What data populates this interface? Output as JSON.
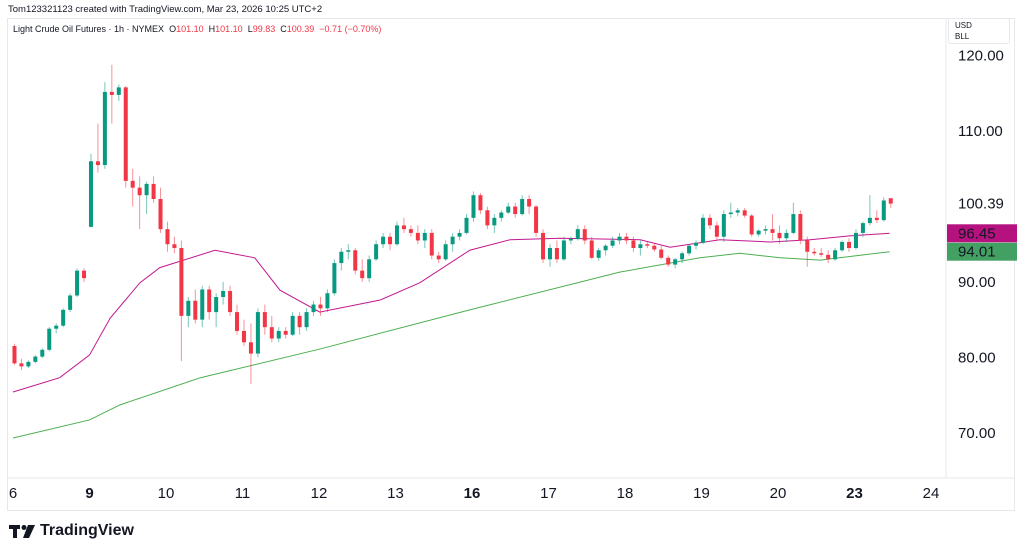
{
  "credit": "Tom123321123 created with TradingView.com, Mar 23, 2026 10:25 UTC+2",
  "legend": {
    "symbol": "Light Crude Oil Futures · 1h · NYMEX",
    "o_label": "O",
    "o": "101.10",
    "h_label": "H",
    "h": "101.10",
    "l_label": "L",
    "l": "99.83",
    "c_label": "C",
    "c": "100.39",
    "change": "−0.71 (−0.70%)"
  },
  "unit_box": {
    "currency": "USD",
    "unit": "BLL"
  },
  "logo": "TradingView",
  "chart_data": {
    "type": "candlestick",
    "interval": "1h",
    "ylim": [
      64,
      125
    ],
    "y_ticks": [
      "120.00",
      "110.00",
      "90.00",
      "80.00",
      "70.00"
    ],
    "y_tick_values": [
      120,
      110,
      90,
      80,
      70
    ],
    "price_labels": [
      {
        "text": "100.39",
        "value": 100.39,
        "bg": "",
        "color": "#131722"
      },
      {
        "text": "96.45",
        "value": 96.45,
        "bg": "#b5117f",
        "color": "#ffffff"
      },
      {
        "text": "94.01",
        "value": 94.01,
        "bg": "#43a063",
        "color": "#ffffff"
      }
    ],
    "colors": {
      "up": "#089981",
      "down": "#f23645",
      "ma_fast": "#c2188f",
      "ma_slow": "#4caf50"
    },
    "days": [
      {
        "label": "6",
        "bold": false,
        "candles": [
          [
            81.5,
            81.8,
            79,
            79.2
          ],
          [
            79.2,
            79.8,
            78.3,
            78.8
          ],
          [
            78.8,
            79.6,
            78.6,
            79.4
          ],
          [
            79.4,
            80.3,
            79.2,
            80.1
          ],
          [
            80.1,
            81.2,
            79.9,
            81
          ],
          [
            81,
            84,
            80.8,
            83.8
          ],
          [
            83.8,
            84.5,
            83.2,
            84.2
          ],
          [
            84.2,
            86.5,
            84,
            86.3
          ],
          [
            86.3,
            88.5,
            86,
            88.2
          ],
          [
            88.2,
            91.8,
            88,
            91.5
          ],
          [
            91.5,
            91.8,
            90,
            90.5
          ]
        ]
      },
      {
        "label": "9",
        "bold": true,
        "candles": [
          [
            97.3,
            107,
            97.3,
            106
          ],
          [
            106,
            111,
            104.5,
            105.5
          ],
          [
            105.5,
            116.5,
            105,
            115.2
          ],
          [
            115.2,
            118.8,
            111,
            114.8
          ],
          [
            114.8,
            116.2,
            114,
            115.8
          ],
          [
            115.8,
            116,
            102.5,
            103.4
          ],
          [
            103.4,
            105,
            100,
            102.5
          ],
          [
            102.5,
            104,
            97,
            101.5
          ],
          [
            101.5,
            103.3,
            99,
            103
          ],
          [
            103,
            104,
            100.5,
            101
          ],
          [
            101,
            102.5,
            96.5,
            97
          ]
        ]
      },
      {
        "label": "10",
        "bold": false,
        "candles": [
          [
            97,
            98,
            94,
            95
          ],
          [
            95,
            96,
            93.8,
            94.5
          ],
          [
            94.5,
            95.5,
            79.5,
            85.5
          ],
          [
            85.5,
            88,
            84,
            87.5
          ],
          [
            87.5,
            89,
            84.5,
            85
          ],
          [
            85,
            89.5,
            84,
            89
          ],
          [
            89,
            89.5,
            85,
            86
          ],
          [
            86,
            88.5,
            84,
            88
          ],
          [
            88,
            90,
            87,
            88.8
          ],
          [
            88.8,
            89.5,
            85.5,
            86
          ],
          [
            86,
            87,
            83,
            83.5
          ]
        ]
      },
      {
        "label": "11",
        "bold": false,
        "candles": [
          [
            83.5,
            85,
            81.5,
            82
          ],
          [
            82,
            84.5,
            76.5,
            80.5
          ],
          [
            80.5,
            86.5,
            80,
            86
          ],
          [
            86,
            87,
            83,
            84
          ],
          [
            84,
            85.5,
            82,
            82.5
          ],
          [
            82.5,
            84,
            82,
            83.5
          ],
          [
            83.5,
            84,
            82.5,
            83
          ],
          [
            83,
            86,
            82.8,
            85.5
          ],
          [
            85.5,
            86,
            83,
            84
          ],
          [
            84,
            86.5,
            83.5,
            86
          ],
          [
            86,
            87.5,
            85.5,
            87
          ]
        ]
      },
      {
        "label": "12",
        "bold": false,
        "candles": [
          [
            87,
            88,
            85.5,
            86.5
          ],
          [
            86.5,
            89,
            86,
            88.5
          ],
          [
            88.5,
            93,
            88.2,
            92.5
          ],
          [
            92.5,
            94.5,
            91.5,
            94
          ],
          [
            94,
            95,
            93,
            94.2
          ],
          [
            94.2,
            94.5,
            91,
            91.5
          ],
          [
            91.5,
            93,
            90,
            90.5
          ],
          [
            90.5,
            93.5,
            90,
            93
          ],
          [
            93,
            95.5,
            92.8,
            95
          ],
          [
            95,
            96.5,
            94.5,
            96
          ],
          [
            96,
            96.5,
            94.2,
            95
          ]
        ]
      },
      {
        "label": "13",
        "bold": false,
        "candles": [
          [
            95,
            98,
            94.8,
            97.5
          ],
          [
            97.5,
            98.5,
            96.5,
            97
          ],
          [
            97,
            97.5,
            96,
            96.5
          ],
          [
            96.5,
            97.5,
            95,
            95.5
          ],
          [
            95.5,
            97,
            94.5,
            96.5
          ],
          [
            96.5,
            97,
            93,
            93.5
          ],
          [
            93.5,
            94,
            92.5,
            93
          ],
          [
            93,
            95.5,
            92.8,
            95
          ],
          [
            95,
            96.5,
            94,
            96
          ],
          [
            96,
            97,
            95.5,
            96.5
          ],
          [
            96.5,
            99,
            96.3,
            98.5
          ]
        ]
      },
      {
        "label": "16",
        "bold": true,
        "candles": [
          [
            98.5,
            102,
            98,
            101.5
          ],
          [
            101.5,
            101.8,
            99,
            99.5
          ],
          [
            99.5,
            100,
            97,
            97.5
          ],
          [
            97.5,
            99,
            96.5,
            98.5
          ],
          [
            98.5,
            99.5,
            98,
            99.2
          ],
          [
            99.2,
            100.5,
            99,
            100
          ],
          [
            100,
            100.5,
            98.5,
            99
          ],
          [
            99,
            101.5,
            98.8,
            101
          ],
          [
            101,
            101.5,
            99,
            100
          ],
          [
            100,
            100.2,
            96,
            96.5
          ],
          [
            96.5,
            97,
            92.5,
            93
          ]
        ]
      },
      {
        "label": "17",
        "bold": false,
        "candles": [
          [
            93,
            95,
            92,
            94.5
          ],
          [
            94.5,
            95.5,
            92.5,
            93
          ],
          [
            93,
            96,
            92.8,
            95.5
          ],
          [
            95.5,
            96,
            95,
            95.7
          ],
          [
            95.7,
            97.5,
            95.5,
            97
          ],
          [
            97,
            97.5,
            95,
            95.5
          ],
          [
            95.5,
            96,
            93,
            93.2
          ],
          [
            93.2,
            94.5,
            92.8,
            94.2
          ],
          [
            94.2,
            95,
            93.5,
            94.8
          ],
          [
            94.8,
            96,
            94.5,
            95.5
          ],
          [
            95.5,
            96.5,
            95,
            96
          ]
        ]
      },
      {
        "label": "18",
        "bold": false,
        "candles": [
          [
            96,
            96.5,
            95,
            95.5
          ],
          [
            95.5,
            96,
            94,
            94.5
          ],
          [
            94.5,
            95.5,
            93.5,
            95
          ],
          [
            95,
            95.3,
            94.5,
            94.8
          ],
          [
            94.8,
            95.2,
            94,
            94.3
          ],
          [
            94.3,
            94.8,
            93,
            93.2
          ],
          [
            93.2,
            93.5,
            92,
            92.3
          ],
          [
            92.3,
            93.2,
            91.8,
            93
          ],
          [
            93,
            94,
            92.5,
            93.8
          ],
          [
            93.8,
            95,
            93.5,
            94.8
          ],
          [
            94.8,
            95.5,
            94.3,
            95.2
          ]
        ]
      },
      {
        "label": "19",
        "bold": false,
        "candles": [
          [
            95.2,
            99,
            95,
            98.5
          ],
          [
            98.5,
            99,
            97,
            97.5
          ],
          [
            97.5,
            98,
            95.5,
            96
          ],
          [
            96,
            99.5,
            95.3,
            99
          ],
          [
            99,
            100.5,
            98.5,
            99.2
          ],
          [
            99.2,
            99.8,
            98.7,
            99.5
          ],
          [
            99.5,
            99.8,
            98.5,
            98.8
          ],
          [
            98.8,
            99,
            96,
            96.3
          ],
          [
            96.3,
            97,
            96,
            96.8
          ],
          [
            96.8,
            97.5,
            96.3,
            97
          ],
          [
            97,
            99,
            95.5,
            96.5
          ]
        ]
      },
      {
        "label": "20",
        "bold": false,
        "candles": [
          [
            96.5,
            97.5,
            95,
            95.8
          ],
          [
            95.8,
            97,
            95.3,
            96.5
          ],
          [
            96.5,
            100.5,
            96.3,
            99
          ],
          [
            99,
            99.5,
            95,
            95.5
          ],
          [
            95.5,
            96,
            92,
            94
          ],
          [
            94,
            94.5,
            93.5,
            93.8
          ],
          [
            93.8,
            94.5,
            93.3,
            93.6
          ],
          [
            93.6,
            94.2,
            92.5,
            93
          ],
          [
            93,
            94.5,
            92.8,
            94.2
          ],
          [
            94.2,
            95.5,
            94,
            95.3
          ],
          [
            95.3,
            95.8,
            94,
            94.5
          ]
        ]
      },
      {
        "label": "23",
        "bold": true,
        "candles": [
          [
            94.5,
            97,
            94.3,
            96.5
          ],
          [
            96.5,
            98,
            96,
            97.8
          ],
          [
            97.8,
            101.5,
            97.5,
            98.5
          ],
          [
            98.5,
            99.5,
            97.8,
            98.2
          ],
          [
            98.2,
            101.2,
            98,
            100.8
          ],
          [
            101.1,
            101.1,
            99.83,
            100.39
          ]
        ]
      },
      {
        "label": "24",
        "bold": false,
        "candles": []
      }
    ],
    "ma_fast": [
      [
        0,
        75.4
      ],
      [
        0.61,
        77.3
      ],
      [
        1.0,
        80.3
      ],
      [
        1.27,
        85.2
      ],
      [
        1.66,
        89.9
      ],
      [
        1.92,
        91.9
      ],
      [
        2.64,
        94.2
      ],
      [
        3.16,
        93.2
      ],
      [
        3.49,
        88.9
      ],
      [
        4.01,
        86
      ],
      [
        4.8,
        87.6
      ],
      [
        5.32,
        89.9
      ],
      [
        5.97,
        94.2
      ],
      [
        6.5,
        95.6
      ],
      [
        7.15,
        95.8
      ],
      [
        8.2,
        95.6
      ],
      [
        8.59,
        94.6
      ],
      [
        9.24,
        95.6
      ],
      [
        9.9,
        95.3
      ],
      [
        10.42,
        95.6
      ],
      [
        10.94,
        96.1
      ],
      [
        11.46,
        96.45
      ]
    ],
    "ma_slow": [
      [
        0,
        69.3
      ],
      [
        1.0,
        71.7
      ],
      [
        1.4,
        73.7
      ],
      [
        2.45,
        77.3
      ],
      [
        4.01,
        81.1
      ],
      [
        5.97,
        86.3
      ],
      [
        7.93,
        91.3
      ],
      [
        8.98,
        93.2
      ],
      [
        9.5,
        93.8
      ],
      [
        10.03,
        93.2
      ],
      [
        10.55,
        92.9
      ],
      [
        11.46,
        94.01
      ]
    ]
  }
}
